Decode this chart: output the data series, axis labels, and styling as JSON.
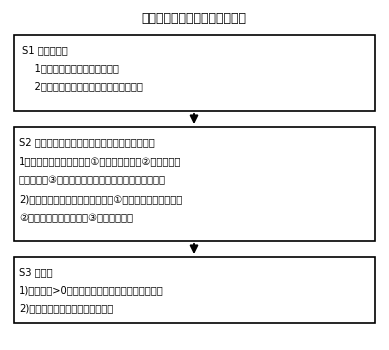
{
  "title": "交通信号弦超模控制方法流程图",
  "title_fontsize": 9,
  "box1_lines": [
    "S1 启动配置：",
    "    1）计算配置默认比率信号模式",
    "    2）获取路网区域各路段长度和交通用时"
  ],
  "box2_lines": [
    "S2 根据弦超模类型模式指令计算配置新弦超模：",
    "1）弦超模基本参数设置：①分区网路节点，②或与重配周",
    "期、限速，③或与发限速、信号计时、变速等参考提示",
    "2)对相关区域配置两维绿波模式：①确定各子区原点位置，",
    "②计算两维绿波时间差，③配置过渡期；"
  ],
  "box3_lines": [
    "S3 执行：",
    "1)过渡周期>0，减１，红灯或无信号等待下秒执行",
    "2)过渡周期均为０，运行比率模式"
  ],
  "box_edge_color": "#000000",
  "box_face_color": "#ffffff",
  "arrow_color": "#000000",
  "text_color": "#000000",
  "bg_color": "#ffffff",
  "font_size": 7.2
}
